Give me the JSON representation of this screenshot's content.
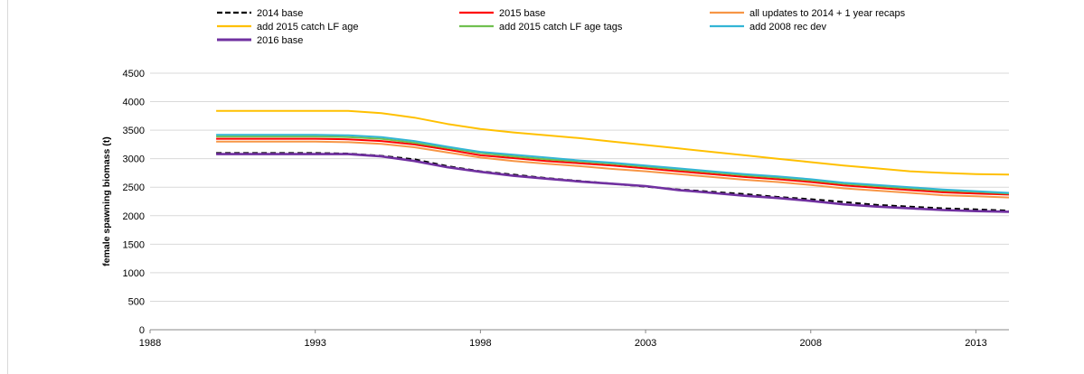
{
  "chart_data": {
    "type": "line",
    "title": "",
    "xlabel": "",
    "ylabel": "female spawning biomass (t)",
    "xlim": [
      1988,
      2014
    ],
    "ylim": [
      0,
      4500
    ],
    "x_ticks": [
      1988,
      1993,
      1998,
      2003,
      2008,
      2013
    ],
    "x_tick_labels": [
      "1988",
      "1993",
      "1998",
      "2003",
      "2008",
      "2013"
    ],
    "y_ticks": [
      0,
      500,
      1000,
      1500,
      2000,
      2500,
      3000,
      3500,
      4000,
      4500
    ],
    "y_tick_labels": [
      "0",
      "500",
      "1000",
      "1500",
      "2000",
      "2500",
      "3000",
      "3500",
      "4000",
      "4500"
    ],
    "grid": "horizontal",
    "legend_position": "top",
    "x": [
      1990,
      1991,
      1992,
      1993,
      1994,
      1995,
      1996,
      1997,
      1998,
      1999,
      2000,
      2001,
      2002,
      2003,
      2004,
      2005,
      2006,
      2007,
      2008,
      2009,
      2010,
      2011,
      2012,
      2013,
      2014
    ],
    "series": [
      {
        "name": "2014 base",
        "color": "#000000",
        "dash": true,
        "values": [
          3100,
          3100,
          3100,
          3100,
          3090,
          3050,
          2990,
          2870,
          2780,
          2720,
          2660,
          2610,
          2560,
          2510,
          2460,
          2420,
          2380,
          2330,
          2290,
          2240,
          2190,
          2160,
          2130,
          2110,
          2090
        ]
      },
      {
        "name": "2015 base",
        "color": "#ff0000",
        "dash": false,
        "values": [
          3350,
          3350,
          3350,
          3350,
          3340,
          3310,
          3250,
          3160,
          3060,
          3010,
          2960,
          2920,
          2880,
          2830,
          2780,
          2730,
          2680,
          2640,
          2590,
          2530,
          2490,
          2450,
          2410,
          2390,
          2370
        ]
      },
      {
        "name": "all updates to 2014 + 1 year recaps",
        "color": "#f79646",
        "dash": false,
        "values": [
          3300,
          3300,
          3300,
          3300,
          3290,
          3260,
          3200,
          3110,
          3020,
          2960,
          2910,
          2870,
          2820,
          2780,
          2730,
          2680,
          2630,
          2590,
          2540,
          2480,
          2440,
          2400,
          2360,
          2340,
          2320
        ]
      },
      {
        "name": "add 2015 catch LF age",
        "color": "#ffc000",
        "dash": false,
        "values": [
          3840,
          3840,
          3840,
          3840,
          3840,
          3800,
          3720,
          3610,
          3520,
          3460,
          3410,
          3360,
          3300,
          3240,
          3180,
          3120,
          3060,
          3000,
          2940,
          2880,
          2830,
          2780,
          2750,
          2730,
          2720
        ]
      },
      {
        "name": "add 2015 catch LF age tags",
        "color": "#70c050",
        "dash": false,
        "values": [
          3390,
          3390,
          3390,
          3390,
          3380,
          3350,
          3280,
          3190,
          3100,
          3040,
          2990,
          2950,
          2910,
          2860,
          2810,
          2760,
          2710,
          2670,
          2620,
          2560,
          2520,
          2480,
          2440,
          2420,
          2390
        ]
      },
      {
        "name": "add 2008 rec dev",
        "color": "#33b5d5",
        "dash": false,
        "values": [
          3420,
          3420,
          3420,
          3420,
          3410,
          3380,
          3310,
          3210,
          3120,
          3070,
          3020,
          2970,
          2930,
          2880,
          2830,
          2780,
          2730,
          2690,
          2640,
          2580,
          2540,
          2500,
          2460,
          2430,
          2400
        ]
      },
      {
        "name": "2016 base",
        "color": "#7030a0",
        "dash": false,
        "values": [
          3080,
          3080,
          3080,
          3080,
          3080,
          3040,
          2960,
          2850,
          2770,
          2700,
          2650,
          2600,
          2560,
          2520,
          2450,
          2400,
          2350,
          2310,
          2260,
          2200,
          2160,
          2130,
          2100,
          2080,
          2070
        ]
      }
    ]
  }
}
